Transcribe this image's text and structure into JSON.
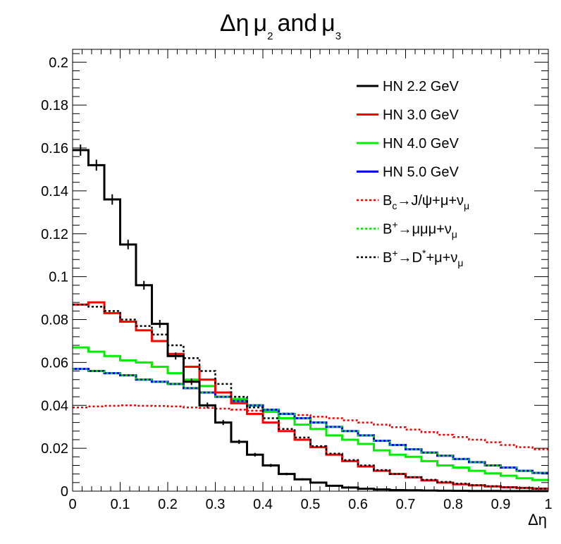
{
  "chart_data": {
    "type": "line",
    "title": {
      "greek": "Δη",
      "mu": "μ",
      "sub2": "2",
      "and": "and",
      "sub3": "3"
    },
    "xlabel": "Δη",
    "ylabel": "",
    "xlim": [
      0,
      1
    ],
    "ylim": [
      0,
      0.206
    ],
    "x_ticks": [
      "0",
      "0.1",
      "0.2",
      "0.3",
      "0.4",
      "0.5",
      "0.6",
      "0.7",
      "0.8",
      "0.9",
      "1"
    ],
    "y_ticks": [
      "0",
      "0.02",
      "0.04",
      "0.06",
      "0.08",
      "0.1",
      "0.12",
      "0.14",
      "0.16",
      "0.18",
      "0.2"
    ],
    "bin_edges": [
      0,
      0.0333,
      0.0667,
      0.1,
      0.1333,
      0.1667,
      0.2,
      0.2333,
      0.2667,
      0.3,
      0.3333,
      0.3667,
      0.4,
      0.4333,
      0.4667,
      0.5,
      0.5333,
      0.5667,
      0.6,
      0.6333,
      0.6667,
      0.7,
      0.7333,
      0.7667,
      0.8,
      0.8333,
      0.8667,
      0.9,
      0.9333,
      0.9667,
      1.0
    ],
    "legend_position": "top-right",
    "grid": false,
    "series": [
      {
        "name": "HN 2.2 GeV",
        "color": "#000000",
        "style": "solid",
        "error_bars": true,
        "values": [
          0.159,
          0.152,
          0.136,
          0.115,
          0.096,
          0.078,
          0.063,
          0.051,
          0.04,
          0.032,
          0.023,
          0.017,
          0.012,
          0.008,
          0.0055,
          0.004,
          0.0025,
          0.0017,
          0.0011,
          0.0008,
          0.0005,
          0.0004,
          0.0003,
          0.0002,
          0.00015,
          0.0001,
          0.0001,
          5e-05,
          5e-05,
          3e-05
        ]
      },
      {
        "name": "HN 3.0 GeV",
        "color": "#ff0000",
        "style": "solid",
        "error_bars": false,
        "values": [
          0.087,
          0.088,
          0.083,
          0.079,
          0.075,
          0.07,
          0.064,
          0.058,
          0.052,
          0.046,
          0.041,
          0.036,
          0.032,
          0.028,
          0.024,
          0.0205,
          0.017,
          0.014,
          0.0115,
          0.0095,
          0.008,
          0.0065,
          0.005,
          0.004,
          0.0032,
          0.0027,
          0.0022,
          0.0018,
          0.0015,
          0.0012
        ]
      },
      {
        "name": "HN 4.0 GeV",
        "color": "#00ee00",
        "style": "solid",
        "error_bars": false,
        "values": [
          0.067,
          0.065,
          0.063,
          0.061,
          0.06,
          0.058,
          0.055,
          0.052,
          0.049,
          0.046,
          0.043,
          0.04,
          0.037,
          0.034,
          0.031,
          0.029,
          0.026,
          0.024,
          0.022,
          0.019,
          0.017,
          0.016,
          0.014,
          0.012,
          0.011,
          0.0095,
          0.0083,
          0.0072,
          0.006,
          0.0052
        ]
      },
      {
        "name": "HN 5.0 GeV",
        "color": "#0000ee",
        "style": "solid",
        "error_bars": false,
        "values": [
          0.057,
          0.056,
          0.055,
          0.054,
          0.052,
          0.051,
          0.05,
          0.048,
          0.046,
          0.044,
          0.042,
          0.04,
          0.038,
          0.036,
          0.034,
          0.032,
          0.03,
          0.028,
          0.026,
          0.0235,
          0.0215,
          0.0195,
          0.018,
          0.0165,
          0.015,
          0.0135,
          0.012,
          0.011,
          0.0095,
          0.0085
        ]
      },
      {
        "name": "B_c→J/ψ+μ+ν_μ",
        "color": "#ee0000",
        "style": "dotted",
        "error_bars": false,
        "values": [
          0.039,
          0.0395,
          0.0398,
          0.04,
          0.0398,
          0.0397,
          0.0395,
          0.039,
          0.0388,
          0.0385,
          0.038,
          0.0375,
          0.037,
          0.0362,
          0.0355,
          0.0347,
          0.034,
          0.033,
          0.032,
          0.031,
          0.0298,
          0.0287,
          0.0275,
          0.0263,
          0.0252,
          0.024,
          0.0228,
          0.0215,
          0.0205,
          0.0195
        ]
      },
      {
        "name": "B⁺→μμμ+ν_μ",
        "color": "#00dd00",
        "style": "dotted",
        "error_bars": false,
        "values": [
          0.057,
          0.056,
          0.055,
          0.054,
          0.052,
          0.051,
          0.05,
          0.048,
          0.046,
          0.044,
          0.042,
          0.04,
          0.038,
          0.036,
          0.034,
          0.032,
          0.03,
          0.028,
          0.026,
          0.0235,
          0.0215,
          0.0195,
          0.018,
          0.0165,
          0.015,
          0.0135,
          0.012,
          0.011,
          0.0095,
          0.0085
        ]
      },
      {
        "name": "B⁺→D*+μ+ν_μ",
        "color": "#000000",
        "style": "dotted",
        "error_bars": false,
        "values": [
          0.087,
          0.086,
          0.084,
          0.08,
          0.077,
          0.073,
          0.068,
          0.062,
          0.056,
          0.05,
          0.044,
          0.039,
          0.034,
          0.029,
          0.025,
          0.021,
          0.0175,
          0.0145,
          0.012,
          0.0098,
          0.008,
          0.0065,
          0.0053,
          0.0043,
          0.0035,
          0.0028,
          0.0023,
          0.0018,
          0.0015,
          0.0012
        ]
      }
    ],
    "legend": [
      {
        "main": "HN 2.2 GeV"
      },
      {
        "main": "HN 3.0 GeV"
      },
      {
        "main": "HN 4.0 GeV"
      },
      {
        "main": "HN 5.0 GeV"
      },
      {
        "parts": [
          {
            "t": "B"
          },
          {
            "t": "c",
            "s": "sub"
          },
          {
            "t": "→J/ψ+μ+ν"
          },
          {
            "t": "μ",
            "s": "sub"
          }
        ]
      },
      {
        "parts": [
          {
            "t": "B"
          },
          {
            "t": "+",
            "s": "sup"
          },
          {
            "t": "→μμμ+ν"
          },
          {
            "t": "μ",
            "s": "sub"
          }
        ]
      },
      {
        "parts": [
          {
            "t": "B"
          },
          {
            "t": "+",
            "s": "sup"
          },
          {
            "t": "→D"
          },
          {
            "t": "*",
            "s": "sup"
          },
          {
            "t": "+μ+ν"
          },
          {
            "t": "μ",
            "s": "sub"
          }
        ]
      }
    ]
  }
}
